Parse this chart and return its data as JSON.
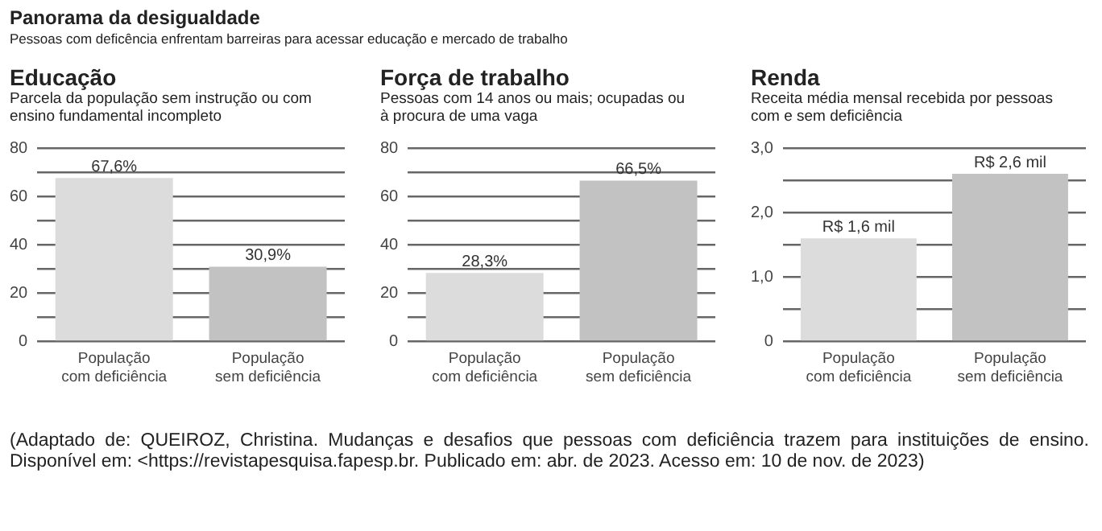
{
  "chart_data": [
    {
      "type": "bar",
      "title": "Educação",
      "subtitle": "Parcela da população sem instrução ou com ensino fundamental incompleto",
      "annotations": [
        "Panorama da desigualdade",
        "Pessoas com deficência enfrentam barreiras para acessar educação e mercado de trabalho"
      ],
      "categories": [
        "População com deficiência",
        "População sem deficiência"
      ],
      "values": [
        67.6,
        30.9
      ],
      "value_labels": [
        "67,6%",
        "30,9%"
      ],
      "colors": [
        "#dcdcdc",
        "#c2c2c2"
      ],
      "ylim": [
        0,
        80
      ],
      "yticks": [
        0,
        {
          "value": 10,
          "label": null
        },
        20,
        {
          "value": 30,
          "label": null
        },
        40,
        {
          "value": 50,
          "label": null
        },
        60,
        {
          "value": 70,
          "label": null
        },
        80
      ],
      "grid": "y"
    },
    {
      "type": "bar",
      "title": "Força de trabalho",
      "subtitle": "Pessoas com 14 anos ou mais; ocupadas ou à procura de uma vaga",
      "categories": [
        "População com deficiência",
        "População sem deficiência"
      ],
      "values": [
        28.3,
        66.5
      ],
      "value_labels": [
        "28,3%",
        "66,5%"
      ],
      "colors": [
        "#dcdcdc",
        "#c2c2c2"
      ],
      "ylim": [
        0,
        80
      ],
      "yticks": [
        0,
        {
          "value": 10,
          "label": null
        },
        20,
        {
          "value": 30,
          "label": null
        },
        40,
        {
          "value": 50,
          "label": null
        },
        60,
        {
          "value": 70,
          "label": null
        },
        80
      ],
      "grid": "y"
    },
    {
      "type": "bar",
      "title": "Renda",
      "subtitle": "Receita média mensal recebida por pessoas com e sem deficiência",
      "annotations": [
        "(Adaptado de: QUEIROZ, Christina. Mudanças e desafios que pessoas com deficiência trazem para instituições de ensino. Disponível em: <https://revistapesquisa.fapesp.br. Publicado em: abr. de 2023. Acesso em: 10 de nov. de 2023)"
      ],
      "categories": [
        "População com deficiência",
        "População sem deficiência"
      ],
      "values": [
        1.6,
        2.6
      ],
      "value_labels": [
        "R$ 1,6 mil",
        "R$ 2,6 mil"
      ],
      "colors": [
        "#dcdcdc",
        "#c2c2c2"
      ],
      "ylim": [
        0,
        3
      ],
      "yticks": [
        0,
        {
          "value": 0.5,
          "label": null
        },
        {
          "value": 1,
          "label": "1,0"
        },
        {
          "value": 1.5,
          "label": null
        },
        {
          "value": 2,
          "label": "2,0"
        },
        {
          "value": 2.5,
          "label": null
        },
        {
          "value": 3,
          "label": "3,0"
        }
      ],
      "grid": "y"
    }
  ]
}
